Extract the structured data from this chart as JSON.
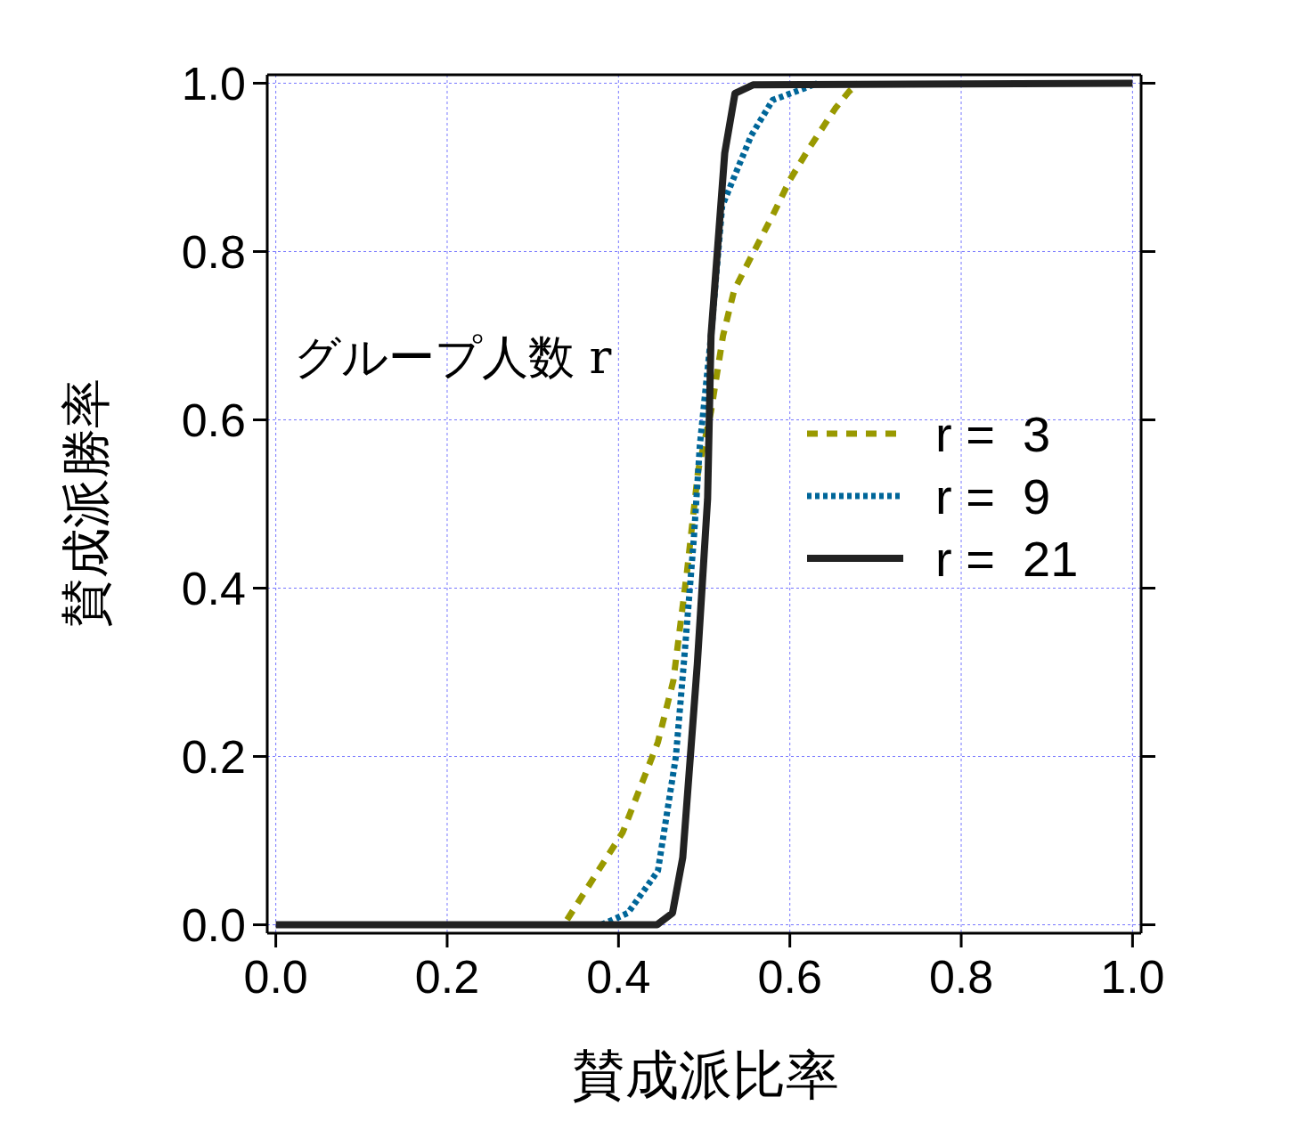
{
  "chart_data": {
    "type": "line",
    "xlabel": "賛成派比率",
    "ylabel": "賛成派勝率",
    "legend_title": "グループ人数 r",
    "legend": "right",
    "grid": true,
    "marker": "none",
    "xlim": [
      -0.01,
      1.01
    ],
    "ylim": [
      -0.01,
      1.01
    ],
    "xticks": [
      {
        "value": 0,
        "label": "0.0"
      },
      {
        "value": 0.2,
        "label": "0.2"
      },
      {
        "value": 0.4,
        "label": "0.4"
      },
      {
        "value": 0.6,
        "label": "0.6"
      },
      {
        "value": 0.8,
        "label": "0.8"
      },
      {
        "value": 1,
        "label": "1.0"
      }
    ],
    "yticks": [
      {
        "value": 0,
        "label": "0.0"
      },
      {
        "value": 0.2,
        "label": "0.2"
      },
      {
        "value": 0.4,
        "label": "0.4"
      },
      {
        "value": 0.6,
        "label": "0.6"
      },
      {
        "value": 0.8,
        "label": "0.8"
      },
      {
        "value": 1,
        "label": "1.0"
      }
    ],
    "series": [
      {
        "name": "r =  3",
        "color": "#999900",
        "line_style": "dashed",
        "x": [
          0.34,
          0.405,
          0.446,
          0.464,
          0.48,
          0.493,
          0.508,
          0.522,
          0.535,
          0.556,
          0.58,
          0.6,
          0.622,
          0.653,
          0.669,
          0.68
        ],
        "values": [
          0.006,
          0.11,
          0.217,
          0.29,
          0.42,
          0.54,
          0.61,
          0.7,
          0.754,
          0.796,
          0.843,
          0.885,
          0.922,
          0.97,
          0.99,
          1
        ]
      },
      {
        "name": "r =  9",
        "color": "#006699",
        "line_style": "dotted",
        "x": [
          0.38,
          0.411,
          0.446,
          0.467,
          0.477,
          0.488,
          0.495,
          0.508,
          0.521,
          0.555,
          0.58,
          0.617,
          0.632
        ],
        "values": [
          0,
          0.014,
          0.064,
          0.2,
          0.32,
          0.46,
          0.57,
          0.7,
          0.854,
          0.938,
          0.98,
          0.994,
          1
        ]
      },
      {
        "name": "r =  21",
        "color": "#222222",
        "line_style": "solid",
        "x": [
          0,
          0.445,
          0.463,
          0.475,
          0.492,
          0.504,
          0.508,
          0.524,
          0.536,
          0.557,
          1
        ],
        "values": [
          0,
          0,
          0.014,
          0.08,
          0.31,
          0.506,
          0.7,
          0.917,
          0.988,
          0.998,
          1
        ]
      }
    ]
  }
}
